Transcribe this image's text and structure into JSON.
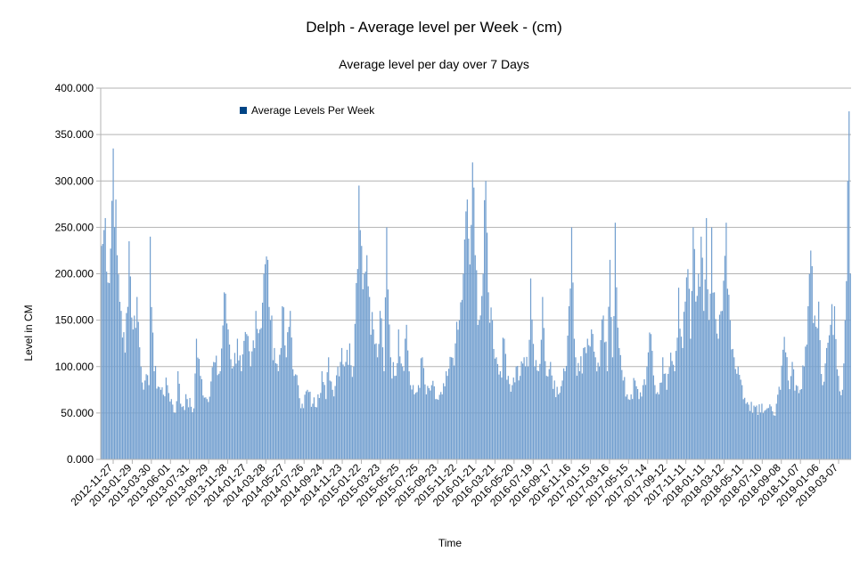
{
  "chart_data": {
    "type": "bar",
    "title": "Delph - Average level per Week - (cm)",
    "subtitle": "Average level per day over 7 Days",
    "xlabel": "Time",
    "ylabel": "Level in CM",
    "ylim": [
      0,
      400
    ],
    "grid": true,
    "legend_position": "top-left",
    "series": [
      {
        "name": "Average Levels Per Week",
        "color": "#729fcf"
      }
    ],
    "y_ticks": [
      "0.000",
      "50.000",
      "100.000",
      "150.000",
      "200.000",
      "250.000",
      "300.000",
      "350.000",
      "400.000"
    ],
    "x_tick_labels": [
      "2012-11-27",
      "2013-01-29",
      "2013-03-30",
      "2013-06-01",
      "2013-07-31",
      "2013-09-29",
      "2013-11-28",
      "2014-01-27",
      "2014-03-28",
      "2014-05-27",
      "2014-07-26",
      "2014-09-24",
      "2014-11-23",
      "2015-01-22",
      "2015-03-23",
      "2015-05-25",
      "2015-07-25",
      "2015-09-23",
      "2015-11-22",
      "2016-01-21",
      "2016-03-21",
      "2016-05-20",
      "2016-07-19",
      "2016-09-17",
      "2016-11-16",
      "2017-01-15",
      "2017-03-16",
      "2017-05-15",
      "2017-07-14",
      "2017-09-12",
      "2017-11-11",
      "2018-01-11",
      "2018-03-12",
      "2018-05-11",
      "2018-07-10",
      "2018-09-08",
      "2018-11-07",
      "2019-01-06",
      "2019-03-07"
    ],
    "anchors": [
      [
        0,
        230
      ],
      [
        3,
        260
      ],
      [
        6,
        190
      ],
      [
        9,
        335
      ],
      [
        12,
        220
      ],
      [
        15,
        160
      ],
      [
        18,
        115
      ],
      [
        21,
        235
      ],
      [
        24,
        140
      ],
      [
        27,
        175
      ],
      [
        30,
        100
      ],
      [
        33,
        85
      ],
      [
        36,
        80
      ],
      [
        37,
        240
      ],
      [
        40,
        95
      ],
      [
        45,
        75
      ],
      [
        50,
        80
      ],
      [
        53,
        65
      ],
      [
        56,
        50
      ],
      [
        58,
        95
      ],
      [
        60,
        60
      ],
      [
        65,
        65
      ],
      [
        70,
        55
      ],
      [
        72,
        130
      ],
      [
        75,
        90
      ],
      [
        80,
        65
      ],
      [
        85,
        105
      ],
      [
        90,
        95
      ],
      [
        93,
        180
      ],
      [
        96,
        140
      ],
      [
        100,
        100
      ],
      [
        103,
        130
      ],
      [
        106,
        95
      ],
      [
        110,
        135
      ],
      [
        113,
        100
      ],
      [
        117,
        160
      ],
      [
        120,
        140
      ],
      [
        123,
        200
      ],
      [
        126,
        215
      ],
      [
        128,
        150
      ],
      [
        131,
        120
      ],
      [
        134,
        95
      ],
      [
        137,
        165
      ],
      [
        140,
        110
      ],
      [
        143,
        160
      ],
      [
        146,
        90
      ],
      [
        149,
        80
      ],
      [
        152,
        60
      ],
      [
        156,
        75
      ],
      [
        160,
        60
      ],
      [
        164,
        70
      ],
      [
        167,
        95
      ],
      [
        170,
        65
      ],
      [
        172,
        110
      ],
      [
        175,
        75
      ],
      [
        179,
        100
      ],
      [
        182,
        120
      ],
      [
        185,
        105
      ],
      [
        188,
        125
      ],
      [
        191,
        100
      ],
      [
        193,
        190
      ],
      [
        195,
        295
      ],
      [
        197,
        230
      ],
      [
        199,
        200
      ],
      [
        201,
        220
      ],
      [
        203,
        175
      ],
      [
        206,
        140
      ],
      [
        209,
        110
      ],
      [
        211,
        160
      ],
      [
        214,
        95
      ],
      [
        216,
        250
      ],
      [
        219,
        110
      ],
      [
        222,
        90
      ],
      [
        225,
        140
      ],
      [
        228,
        100
      ],
      [
        231,
        145
      ],
      [
        234,
        80
      ],
      [
        237,
        70
      ],
      [
        240,
        80
      ],
      [
        243,
        110
      ],
      [
        246,
        70
      ],
      [
        250,
        80
      ],
      [
        254,
        65
      ],
      [
        258,
        70
      ],
      [
        262,
        90
      ],
      [
        265,
        110
      ],
      [
        268,
        125
      ],
      [
        271,
        150
      ],
      [
        274,
        200
      ],
      [
        277,
        280
      ],
      [
        279,
        210
      ],
      [
        281,
        320
      ],
      [
        283,
        220
      ],
      [
        286,
        150
      ],
      [
        289,
        200
      ],
      [
        291,
        300
      ],
      [
        293,
        180
      ],
      [
        296,
        150
      ],
      [
        299,
        110
      ],
      [
        302,
        95
      ],
      [
        305,
        130
      ],
      [
        308,
        90
      ],
      [
        311,
        80
      ],
      [
        314,
        100
      ],
      [
        317,
        90
      ],
      [
        320,
        110
      ],
      [
        323,
        100
      ],
      [
        325,
        195
      ],
      [
        328,
        100
      ],
      [
        331,
        95
      ],
      [
        334,
        175
      ],
      [
        337,
        90
      ],
      [
        340,
        105
      ],
      [
        343,
        85
      ],
      [
        346,
        70
      ],
      [
        349,
        85
      ],
      [
        351,
        95
      ],
      [
        354,
        165
      ],
      [
        356,
        250
      ],
      [
        359,
        110
      ],
      [
        362,
        95
      ],
      [
        365,
        120
      ],
      [
        368,
        130
      ],
      [
        371,
        140
      ],
      [
        374,
        110
      ],
      [
        377,
        100
      ],
      [
        380,
        155
      ],
      [
        383,
        95
      ],
      [
        385,
        215
      ],
      [
        387,
        110
      ],
      [
        389,
        255
      ],
      [
        392,
        120
      ],
      [
        395,
        85
      ],
      [
        398,
        70
      ],
      [
        401,
        70
      ],
      [
        404,
        85
      ],
      [
        407,
        65
      ],
      [
        410,
        80
      ],
      [
        413,
        100
      ],
      [
        416,
        135
      ],
      [
        419,
        80
      ],
      [
        422,
        70
      ],
      [
        425,
        110
      ],
      [
        428,
        75
      ],
      [
        431,
        115
      ],
      [
        434,
        95
      ],
      [
        437,
        185
      ],
      [
        440,
        120
      ],
      [
        442,
        170
      ],
      [
        444,
        205
      ],
      [
        446,
        130
      ],
      [
        448,
        250
      ],
      [
        450,
        170
      ],
      [
        452,
        200
      ],
      [
        454,
        240
      ],
      [
        456,
        160
      ],
      [
        458,
        260
      ],
      [
        460,
        150
      ],
      [
        462,
        250
      ],
      [
        464,
        180
      ],
      [
        467,
        130
      ],
      [
        470,
        160
      ],
      [
        473,
        255
      ],
      [
        476,
        150
      ],
      [
        479,
        110
      ],
      [
        482,
        100
      ],
      [
        485,
        80
      ],
      [
        488,
        60
      ],
      [
        492,
        62
      ],
      [
        496,
        58
      ],
      [
        500,
        60
      ],
      [
        504,
        55
      ],
      [
        508,
        52
      ],
      [
        511,
        60
      ],
      [
        514,
        75
      ],
      [
        517,
        132
      ],
      [
        520,
        85
      ],
      [
        523,
        105
      ],
      [
        526,
        80
      ],
      [
        529,
        75
      ],
      [
        532,
        100
      ],
      [
        535,
        165
      ],
      [
        537,
        225
      ],
      [
        540,
        155
      ],
      [
        543,
        170
      ],
      [
        546,
        80
      ],
      [
        549,
        120
      ],
      [
        552,
        145
      ],
      [
        555,
        165
      ],
      [
        558,
        90
      ],
      [
        561,
        75
      ],
      [
        563,
        150
      ],
      [
        565,
        300
      ],
      [
        566,
        375
      ],
      [
        567,
        200
      ]
    ]
  }
}
